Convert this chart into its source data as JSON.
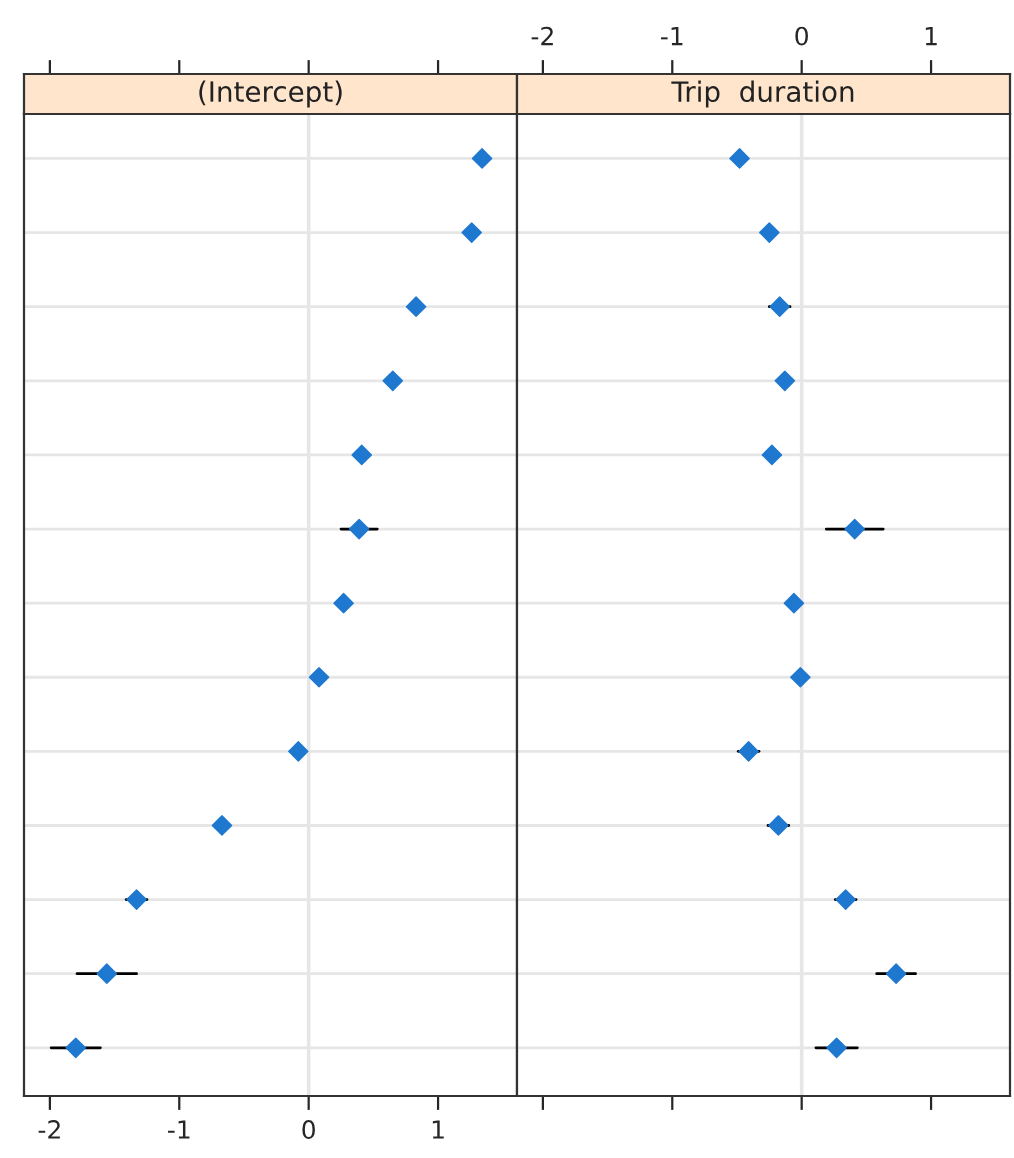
{
  "chart_data": [
    {
      "type": "scatter",
      "orientation": "horizontal",
      "title": "(Intercept)",
      "categories": [
        null,
        null,
        null,
        null,
        null,
        null,
        null,
        null,
        null,
        null,
        null,
        null,
        null
      ],
      "series": [
        {
          "color": "#1f78d0",
          "values": [
            1.34,
            1.26,
            0.83,
            0.65,
            0.41,
            0.39,
            0.27,
            0.08,
            -0.08,
            -0.67,
            -1.33,
            -1.56,
            -1.8
          ],
          "errors": [
            null,
            null,
            null,
            null,
            null,
            0.14,
            null,
            null,
            null,
            null,
            0.08,
            0.23,
            0.19
          ]
        }
      ],
      "xlim": [
        -2.2,
        1.61
      ],
      "xticks": [
        -2,
        -1,
        0,
        1
      ],
      "ref_lines": [
        {
          "axis": "x",
          "value": 0,
          "color": "#e6e6e6"
        }
      ],
      "grid": "y",
      "marker": "diamond",
      "tick_labels": "x"
    },
    {
      "type": "scatter",
      "orientation": "horizontal",
      "title": "Trip  duration",
      "categories": [
        null,
        null,
        null,
        null,
        null,
        null,
        null,
        null,
        null,
        null,
        null,
        null,
        null
      ],
      "series": [
        {
          "color": "#1f78d0",
          "axis": "x2",
          "values": [
            -0.48,
            -0.25,
            -0.17,
            -0.13,
            -0.23,
            0.41,
            -0.06,
            -0.01,
            -0.41,
            -0.18,
            0.34,
            0.73,
            0.27
          ],
          "errors": [
            null,
            null,
            0.08,
            null,
            null,
            0.22,
            null,
            null,
            0.08,
            0.08,
            0.08,
            0.15,
            0.16
          ]
        }
      ],
      "x2lim": [
        -2.2,
        1.61
      ],
      "x2ticks": [
        -2,
        -1,
        0,
        1
      ],
      "ref_lines": [
        {
          "axis": "x2",
          "value": 0,
          "color": "#e6e6e6"
        }
      ],
      "grid": "y",
      "marker": "diamond",
      "tick_labels": "x"
    }
  ]
}
